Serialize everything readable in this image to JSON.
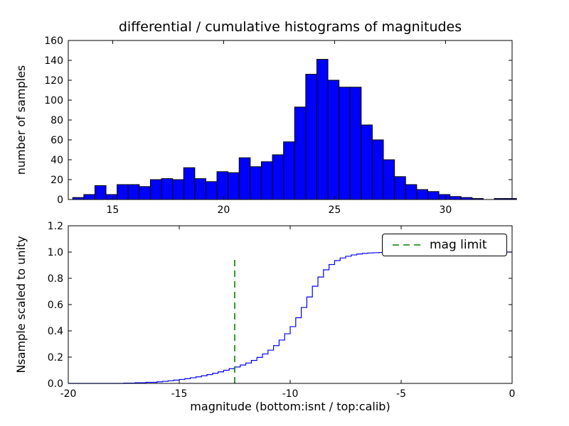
{
  "chart_data": [
    {
      "type": "bar",
      "subplot": "top-differential-histogram",
      "title": "differential / cumulative histograms of magnitudes",
      "ylabel": "number of samples",
      "xlim": [
        13,
        33
      ],
      "ylim": [
        0,
        160
      ],
      "xticks": [
        15,
        20,
        25,
        30
      ],
      "xticklabels": [
        "15",
        "20",
        "25",
        "30"
      ],
      "yticks": [
        0,
        20,
        40,
        60,
        80,
        100,
        120,
        140,
        160
      ],
      "yticklabels": [
        "0",
        "20",
        "40",
        "60",
        "80",
        "100",
        "120",
        "140",
        "160"
      ],
      "grid": false,
      "bar_color": "#0000ff",
      "bar_edge_color": "#000000",
      "bins": {
        "start": 13.2,
        "width": 0.5
      },
      "counts": [
        2,
        5,
        14,
        5,
        15,
        15,
        13,
        20,
        21,
        20,
        32,
        21,
        18,
        28,
        27,
        42,
        33,
        38,
        45,
        58,
        93,
        126,
        141,
        120,
        113,
        113,
        75,
        60,
        40,
        23,
        15,
        10,
        8,
        5,
        3,
        2,
        1,
        0,
        1,
        1
      ]
    },
    {
      "type": "line",
      "subplot": "bottom-cumulative-histogram",
      "ylabel": "Nsample scaled to unity",
      "xlabel": "magnitude (bottom:isnt / top:calib)",
      "xlim": [
        -20,
        0
      ],
      "ylim": [
        0,
        1.2
      ],
      "xticks": [
        -20,
        -15,
        -10,
        -5,
        0
      ],
      "xticklabels": [
        "-20",
        "-15",
        "-10",
        "-5",
        "0"
      ],
      "yticks": [
        0,
        0.2,
        0.4,
        0.6,
        0.8,
        1.0,
        1.2
      ],
      "yticklabels": [
        "0.0",
        "0.2",
        "0.4",
        "0.6",
        "0.8",
        "1.0",
        "1.2"
      ],
      "grid": false,
      "line_color": "#0000ff",
      "step_points": [
        [
          -20,
          0
        ],
        [
          -17.5,
          0.002
        ],
        [
          -17,
          0.005
        ],
        [
          -16.5,
          0.008
        ],
        [
          -16,
          0.012
        ],
        [
          -15.75,
          0.016
        ],
        [
          -15.5,
          0.02
        ],
        [
          -15.25,
          0.025
        ],
        [
          -15,
          0.03
        ],
        [
          -14.75,
          0.036
        ],
        [
          -14.5,
          0.043
        ],
        [
          -14.25,
          0.05
        ],
        [
          -14,
          0.058
        ],
        [
          -13.75,
          0.067
        ],
        [
          -13.5,
          0.077
        ],
        [
          -13.25,
          0.088
        ],
        [
          -13,
          0.1
        ],
        [
          -12.75,
          0.112
        ],
        [
          -12.5,
          0.125
        ],
        [
          -12.25,
          0.14
        ],
        [
          -12,
          0.155
        ],
        [
          -11.75,
          0.175
        ],
        [
          -11.5,
          0.198
        ],
        [
          -11.25,
          0.224
        ],
        [
          -11,
          0.253
        ],
        [
          -10.75,
          0.288
        ],
        [
          -10.5,
          0.33
        ],
        [
          -10.25,
          0.378
        ],
        [
          -10,
          0.432
        ],
        [
          -9.75,
          0.5
        ],
        [
          -9.5,
          0.578
        ],
        [
          -9.25,
          0.658
        ],
        [
          -9,
          0.74
        ],
        [
          -8.75,
          0.81
        ],
        [
          -8.5,
          0.865
        ],
        [
          -8.25,
          0.905
        ],
        [
          -8,
          0.935
        ],
        [
          -7.75,
          0.955
        ],
        [
          -7.5,
          0.968
        ],
        [
          -7.25,
          0.978
        ],
        [
          -7,
          0.985
        ],
        [
          -6.75,
          0.99
        ],
        [
          -6.5,
          0.993
        ],
        [
          -6.25,
          0.995
        ],
        [
          -6,
          0.997
        ],
        [
          -5.5,
          0.998
        ],
        [
          -5,
          0.999
        ],
        [
          -4.5,
          1.0
        ],
        [
          0,
          1.0
        ]
      ],
      "mag_limit": {
        "x": -12.5,
        "ymax": 0.97,
        "color": "#008000",
        "label": "mag limit"
      },
      "legend": {
        "label": "mag limit",
        "position": "upper right"
      }
    }
  ]
}
